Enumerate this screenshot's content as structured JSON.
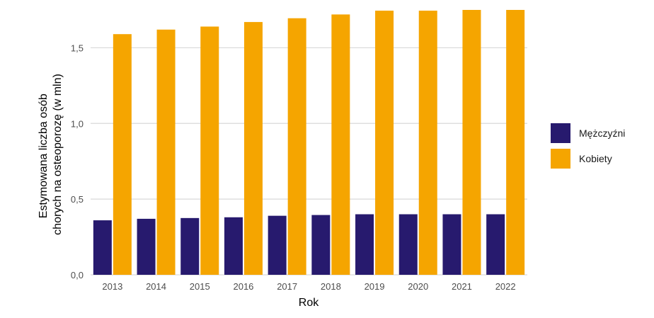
{
  "chart_data": {
    "type": "bar",
    "title": "",
    "xlabel": "Rok",
    "ylabel_lines": [
      "Estymowana liczba osób",
      "chorych na osteoporozę (w mln)"
    ],
    "categories": [
      "2013",
      "2014",
      "2015",
      "2016",
      "2017",
      "2018",
      "2019",
      "2020",
      "2021",
      "2022"
    ],
    "series": [
      {
        "name": "Mężczyźni",
        "color": "#271A6E",
        "values": [
          0.36,
          0.37,
          0.375,
          0.38,
          0.39,
          0.395,
          0.4,
          0.4,
          0.4,
          0.4
        ]
      },
      {
        "name": "Kobiety",
        "color": "#F5A500",
        "values": [
          1.59,
          1.62,
          1.64,
          1.67,
          1.695,
          1.72,
          1.745,
          1.745,
          1.75,
          1.75
        ]
      }
    ],
    "ylim": [
      0,
      1.75
    ],
    "yticks": [
      0,
      0.5,
      1.0,
      1.5
    ],
    "ytick_labels": [
      "0,0",
      "0,5",
      "1,0",
      "1,5"
    ],
    "grid": "horizontal",
    "legend_position": "right"
  }
}
